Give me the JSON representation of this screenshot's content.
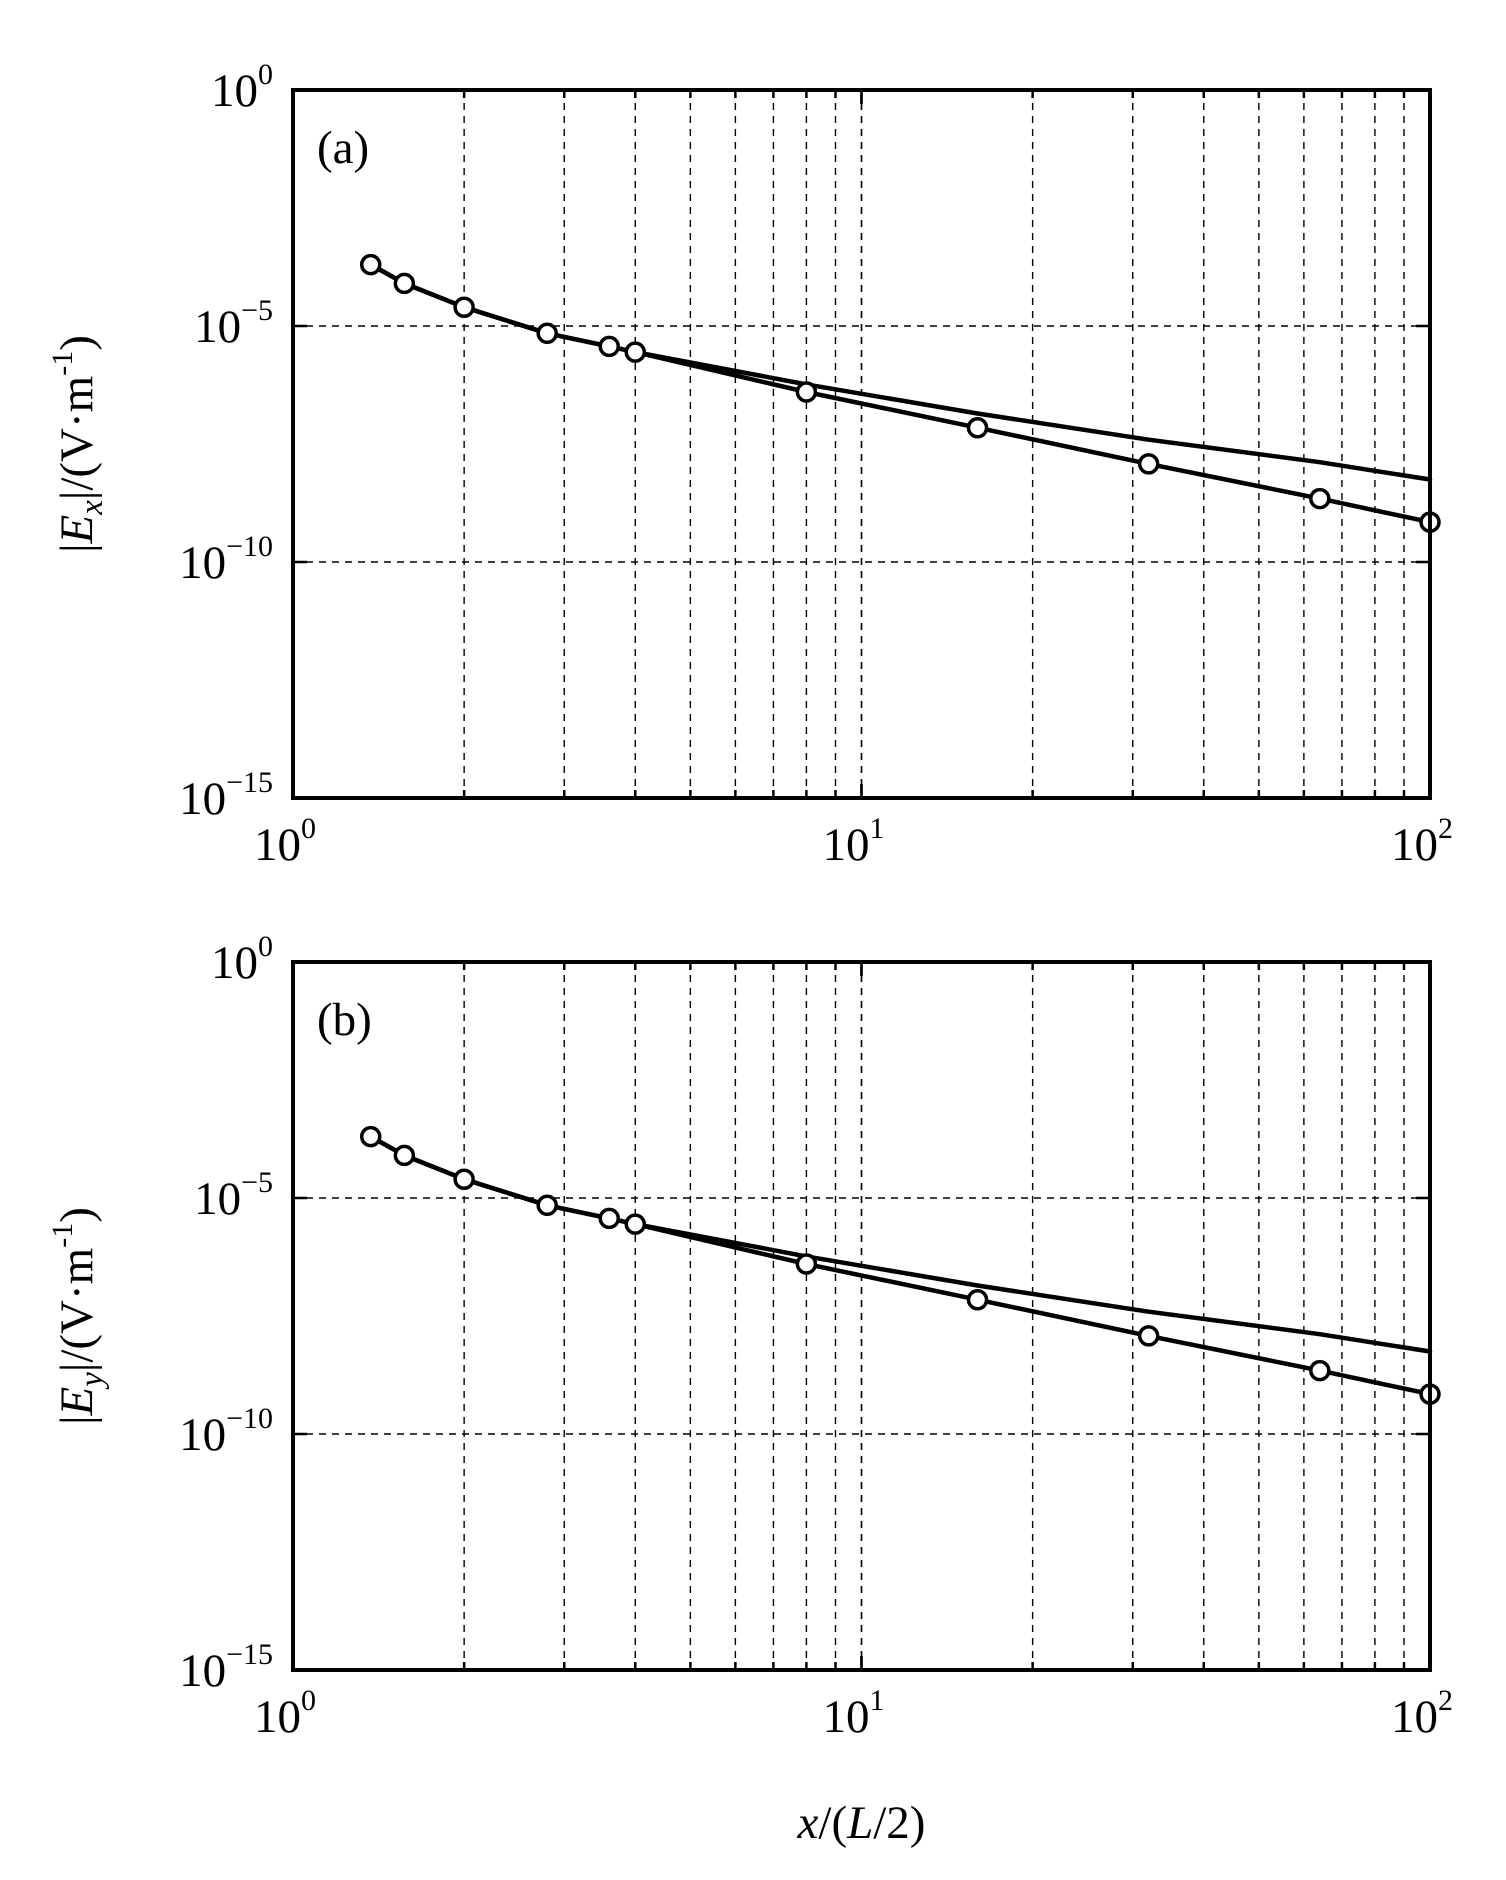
{
  "chart_data": [
    {
      "type": "line",
      "panel_label": "(a)",
      "ylabel_prefix": "|",
      "ylabel_symbol": "E",
      "ylabel_sub": "x",
      "ylabel_suffix": "|/(V·m",
      "ylabel_sup": "-1",
      "ylabel_close": ")",
      "x_scale": "log",
      "y_scale": "log",
      "xlim": [
        1,
        100
      ],
      "ylim": [
        1e-15,
        1
      ],
      "x_ticks": [
        {
          "base": "10",
          "exp": "0",
          "value": 1
        },
        {
          "base": "10",
          "exp": "1",
          "value": 10
        },
        {
          "base": "10",
          "exp": "2",
          "value": 100
        }
      ],
      "y_ticks": [
        {
          "base": "10",
          "exp": "0",
          "value": 1
        },
        {
          "base": "10",
          "exp": "−5",
          "value": 1e-05
        },
        {
          "base": "10",
          "exp": "−10",
          "value": 1e-10
        },
        {
          "base": "10",
          "exp": "−15",
          "value": 1e-15
        }
      ],
      "grid": true,
      "series": [
        {
          "marker": "circle",
          "x": [
            1.37,
            1.57,
            2.0,
            2.8,
            3.6,
            4.0,
            8.0,
            16.0,
            32.0,
            64.0,
            100.0
          ],
          "y": [
            0.0002,
            8e-05,
            2.5e-05,
            7e-06,
            3.7e-06,
            2.8e-06,
            4e-07,
            7e-08,
            1.2e-08,
            2.2e-09,
            7e-10
          ]
        },
        {
          "marker": "none",
          "x": [
            1.37,
            1.57,
            2.0,
            2.8,
            3.6,
            4.0,
            8.0,
            16.0,
            32.0,
            64.0,
            100.0
          ],
          "y": [
            0.0002,
            8e-05,
            2.5e-05,
            7e-06,
            3.7e-06,
            2.8e-06,
            5.8e-07,
            1.4e-07,
            3.9e-08,
            1.3e-08,
            5.6e-09
          ]
        }
      ]
    },
    {
      "type": "line",
      "panel_label": "(b)",
      "ylabel_prefix": "|",
      "ylabel_symbol": "E",
      "ylabel_sub": "y",
      "ylabel_suffix": "|/(V·m",
      "ylabel_sup": "-1",
      "ylabel_close": ")",
      "x_scale": "log",
      "y_scale": "log",
      "xlim": [
        1,
        100
      ],
      "ylim": [
        1e-15,
        1
      ],
      "x_ticks": [
        {
          "base": "10",
          "exp": "0",
          "value": 1
        },
        {
          "base": "10",
          "exp": "1",
          "value": 10
        },
        {
          "base": "10",
          "exp": "2",
          "value": 100
        }
      ],
      "y_ticks": [
        {
          "base": "10",
          "exp": "0",
          "value": 1
        },
        {
          "base": "10",
          "exp": "−5",
          "value": 1e-05
        },
        {
          "base": "10",
          "exp": "−10",
          "value": 1e-10
        },
        {
          "base": "10",
          "exp": "−15",
          "value": 1e-15
        }
      ],
      "grid": true,
      "series": [
        {
          "marker": "circle",
          "x": [
            1.37,
            1.57,
            2.0,
            2.8,
            3.6,
            4.0,
            8.0,
            16.0,
            32.0,
            64.0,
            100.0
          ],
          "y": [
            0.0002,
            8e-05,
            2.5e-05,
            7e-06,
            3.7e-06,
            2.8e-06,
            4e-07,
            7e-08,
            1.2e-08,
            2.2e-09,
            7e-10
          ]
        },
        {
          "marker": "none",
          "x": [
            1.37,
            1.57,
            2.0,
            2.8,
            3.6,
            4.0,
            8.0,
            16.0,
            32.0,
            64.0,
            100.0
          ],
          "y": [
            0.0002,
            8e-05,
            2.5e-05,
            7e-06,
            3.7e-06,
            2.8e-06,
            5.8e-07,
            1.4e-07,
            3.9e-08,
            1.3e-08,
            5.6e-09
          ]
        }
      ]
    }
  ],
  "xlabel": {
    "var": "x",
    "mid": "/(",
    "var2": "L",
    "tail": "/2)"
  }
}
